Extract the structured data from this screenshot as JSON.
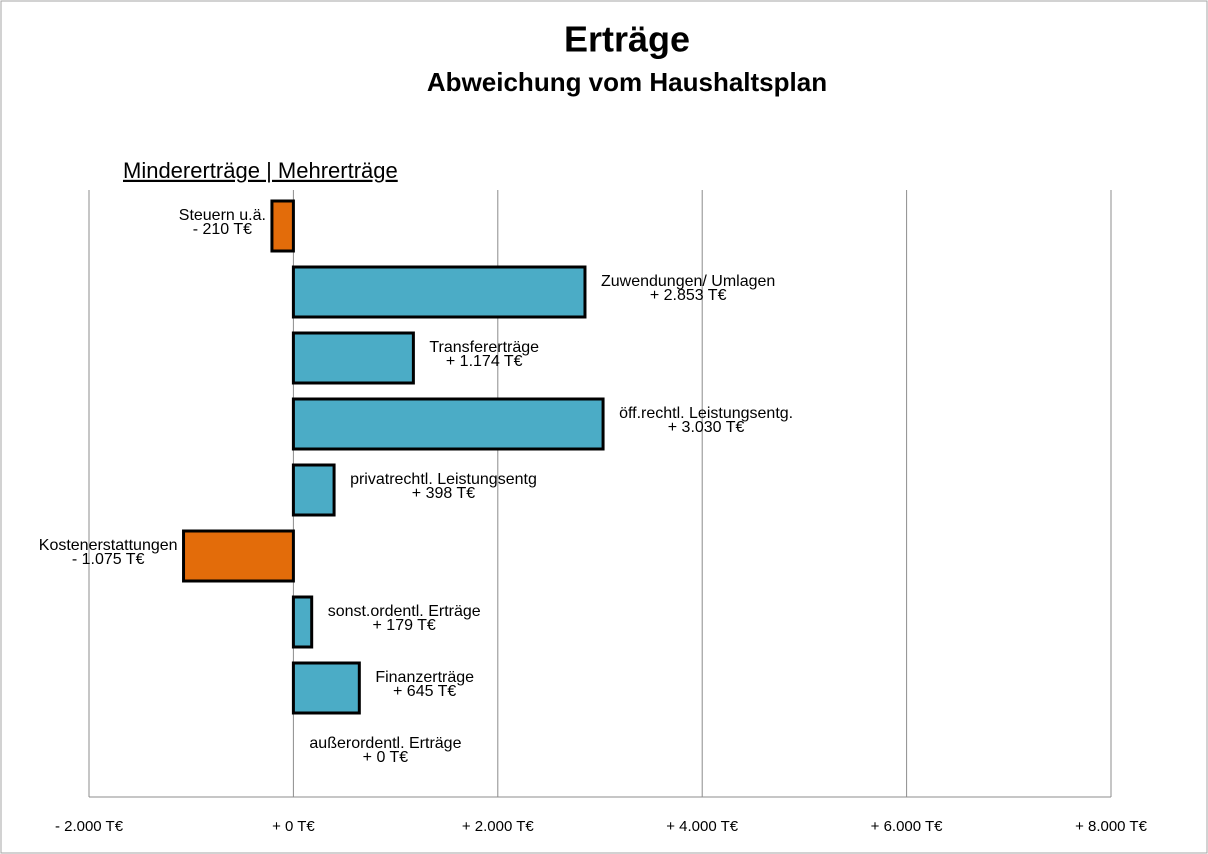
{
  "chart_data": {
    "type": "hbar",
    "title": "Erträge",
    "subtitle": "Abweichung  vom  Haushaltsplan",
    "annotation": "Mindererträge | Mehrerträge",
    "categories": [
      "Steuern u.ä.",
      "Zuwendungen/ Umlagen",
      "Transfererträge",
      "öff.rechtl. Leistungsentg.",
      "privatrechtl. Leistungsentg",
      "Kostenerstattungen",
      "sonst.ordentl. Erträge",
      "Finanzerträge",
      "außerordentl. Erträge"
    ],
    "values": [
      -210,
      2853,
      1174,
      3030,
      398,
      -1075,
      179,
      645,
      0
    ],
    "value_labels": [
      "- 210 T€",
      "+ 2.853 T€",
      "+ 1.174 T€",
      "+ 3.030 T€",
      "+ 398 T€",
      "- 1.075 T€",
      "+ 179 T€",
      "+ 645 T€",
      "+ 0 T€"
    ],
    "colors": [
      "#e36c0a",
      "#4bacc6",
      "#4bacc6",
      "#4bacc6",
      "#4bacc6",
      "#e36c0a",
      "#4bacc6",
      "#4bacc6",
      "#4bacc6"
    ],
    "xlim": [
      -2000,
      8000
    ],
    "xticks": [
      {
        "value": -2000,
        "label": "- 2.000 T€"
      },
      {
        "value": 0,
        "label": "+ 0 T€"
      },
      {
        "value": 2000,
        "label": "+ 2.000 T€"
      },
      {
        "value": 4000,
        "label": "+ 4.000 T€"
      },
      {
        "value": 6000,
        "label": "+ 6.000 T€"
      },
      {
        "value": 8000,
        "label": "+ 8.000 T€"
      }
    ],
    "grid": true
  }
}
